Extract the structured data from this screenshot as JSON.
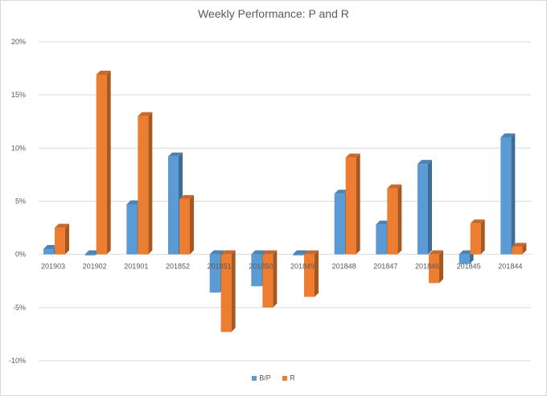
{
  "chart_data": {
    "type": "bar",
    "title": "Weekly Performance: P and R",
    "categories": [
      "201903",
      "201902",
      "201901",
      "201852",
      "201851",
      "201850",
      "201849",
      "201848",
      "201847",
      "201846",
      "201845",
      "201844"
    ],
    "series": [
      {
        "name": "B/P",
        "color": "#5b9bd5",
        "values": [
          0.5,
          -0.1,
          4.7,
          9.2,
          -3.6,
          -3.0,
          -0.1,
          5.7,
          2.8,
          8.5,
          -0.9,
          11.0
        ]
      },
      {
        "name": "R",
        "color": "#ed7d31",
        "values": [
          2.5,
          16.9,
          13.0,
          5.2,
          -7.3,
          -5.0,
          -4.0,
          9.1,
          6.2,
          -2.7,
          2.9,
          0.7
        ]
      }
    ],
    "y_tick_labels": [
      "20%",
      "15%",
      "10%",
      "5%",
      "0%",
      "-5%",
      "-10%"
    ],
    "y_ticks": [
      20,
      15,
      10,
      5,
      0,
      -5,
      -10
    ],
    "ylim": [
      -10,
      20
    ],
    "grid": true,
    "legend_position": "bottom"
  }
}
